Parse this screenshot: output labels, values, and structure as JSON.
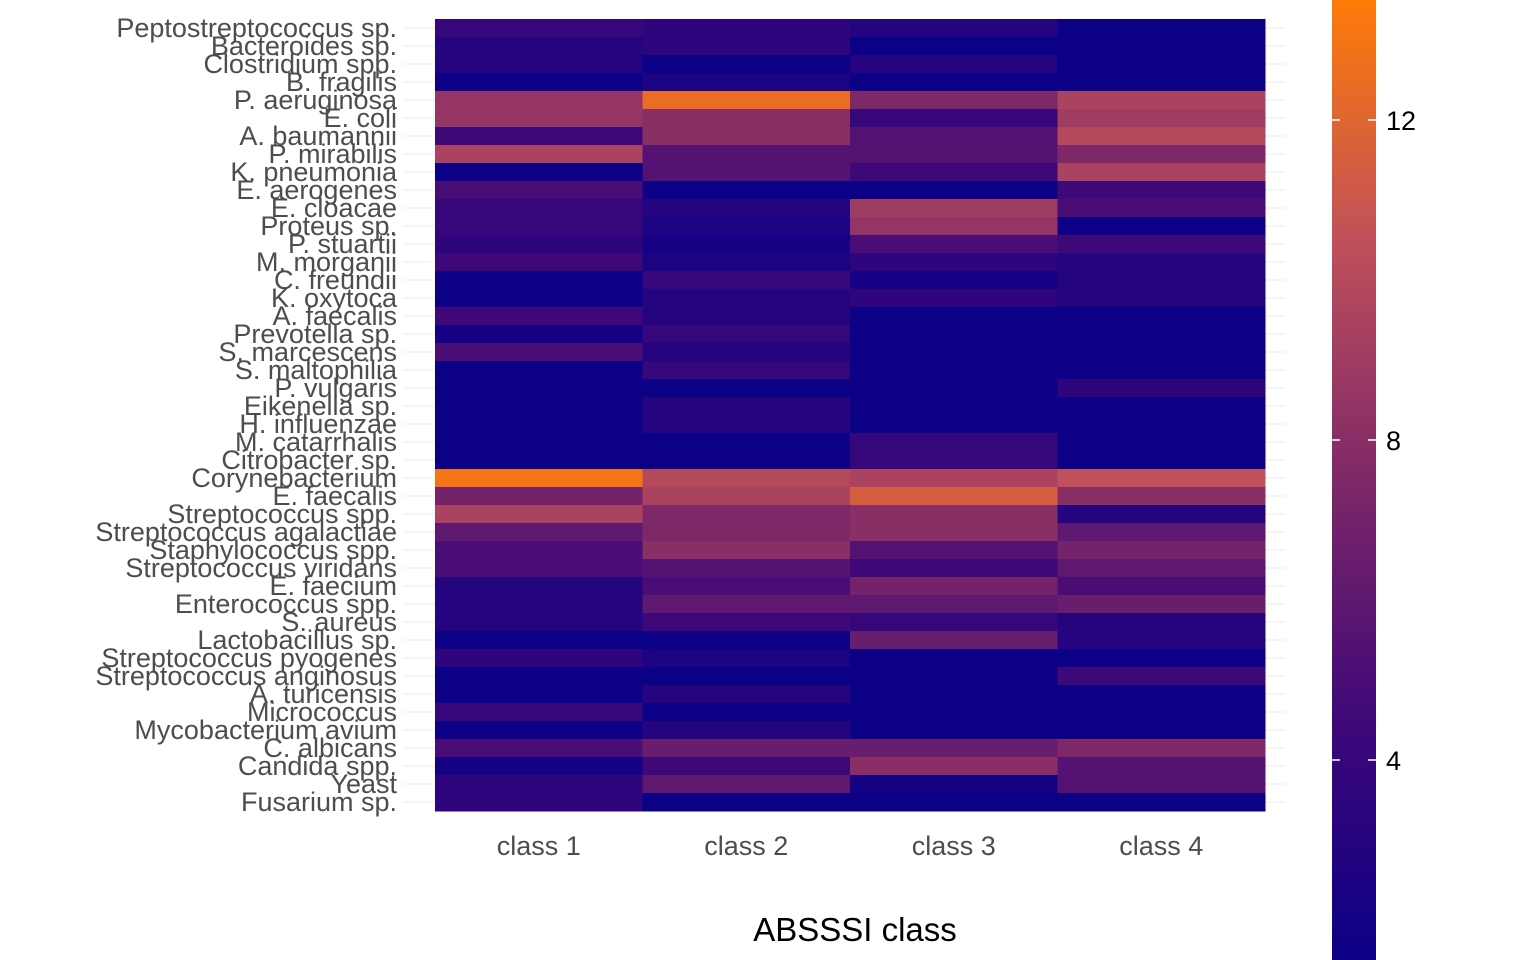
{
  "chart_data": {
    "type": "heatmap",
    "xlabel": "ABSSSI class",
    "ylabel": "",
    "x_categories": [
      "class 1",
      "class 2",
      "class 3",
      "class 4"
    ],
    "y_categories": [
      "Peptostreptococcus sp.",
      "Bacteroides sp.",
      "Clostridium spp.",
      "B. fragilis",
      "P. aeruginosa",
      "E. coli",
      "A. baumannii",
      "P. mirabilis",
      "K. pneumonia",
      "E. aerogenes",
      "E. cloacae",
      "Proteus sp.",
      "P. stuartii",
      "M. morganii",
      "C. freundii",
      "K. oxytoca",
      "A. faecalis",
      "Prevotella sp.",
      "S. marcescens",
      "S. maltophilia",
      "P. vulgaris",
      "Eikenella sp.",
      "H. influenzae",
      "M. catarrhalis",
      "Citrobacter sp.",
      "Corynebacterium",
      "E. faecalis",
      "Streptococcus spp.",
      "Streptococcus agalactiae",
      "Staphylococcus spp.",
      "Streptococcus viridans",
      "E. faecium",
      "Enterococcus spp.",
      "S. aureus",
      "Lactobacillus sp.",
      "Streptococcus pyogenes",
      "Streptococcus anginosus",
      "A. turicensis",
      "Micrococcus",
      "Mycobacterium avium",
      "C. albicans",
      "Candida spp.",
      "Yeast",
      "Fusarium sp."
    ],
    "values": [
      [
        4.0,
        3.5,
        3.0,
        1.5
      ],
      [
        3.0,
        3.5,
        1.5,
        1.5
      ],
      [
        3.0,
        1.5,
        3.0,
        1.5
      ],
      [
        1.5,
        2.5,
        1.5,
        1.5
      ],
      [
        8.5,
        12.5,
        7.5,
        9.5
      ],
      [
        8.5,
        8.0,
        4.0,
        9.0
      ],
      [
        4.5,
        8.0,
        5.5,
        10.0
      ],
      [
        9.5,
        5.5,
        5.5,
        7.5
      ],
      [
        1.5,
        5.5,
        4.5,
        9.5
      ],
      [
        5.0,
        1.5,
        1.5,
        4.5
      ],
      [
        4.0,
        3.0,
        9.0,
        5.0
      ],
      [
        4.0,
        2.5,
        8.5,
        1.5
      ],
      [
        3.5,
        2.0,
        5.0,
        4.5
      ],
      [
        4.5,
        2.5,
        3.5,
        3.0
      ],
      [
        1.5,
        4.0,
        2.0,
        3.0
      ],
      [
        1.5,
        3.0,
        3.5,
        3.0
      ],
      [
        4.5,
        3.0,
        1.5,
        1.5
      ],
      [
        2.0,
        4.0,
        1.5,
        1.5
      ],
      [
        5.0,
        3.0,
        1.5,
        1.5
      ],
      [
        1.5,
        4.0,
        1.5,
        1.5
      ],
      [
        1.5,
        1.5,
        1.5,
        3.5
      ],
      [
        1.5,
        3.0,
        1.5,
        1.5
      ],
      [
        1.5,
        3.0,
        1.5,
        1.5
      ],
      [
        1.5,
        1.5,
        4.0,
        1.5
      ],
      [
        1.5,
        1.5,
        4.0,
        1.5
      ],
      [
        13.0,
        10.0,
        9.5,
        10.5
      ],
      [
        7.0,
        9.5,
        11.5,
        8.0
      ],
      [
        9.5,
        7.5,
        8.0,
        3.0
      ],
      [
        6.0,
        7.5,
        8.0,
        6.0
      ],
      [
        5.0,
        8.0,
        5.5,
        7.0
      ],
      [
        5.0,
        5.5,
        4.5,
        6.0
      ],
      [
        3.0,
        5.0,
        7.0,
        5.0
      ],
      [
        3.0,
        6.0,
        6.0,
        6.5
      ],
      [
        3.0,
        4.5,
        4.0,
        3.0
      ],
      [
        1.5,
        1.5,
        6.5,
        3.0
      ],
      [
        3.5,
        2.5,
        1.5,
        1.5
      ],
      [
        1.5,
        1.5,
        1.5,
        4.5
      ],
      [
        1.5,
        3.0,
        1.5,
        1.5
      ],
      [
        4.0,
        1.5,
        1.5,
        1.5
      ],
      [
        1.5,
        3.0,
        1.5,
        1.5
      ],
      [
        5.0,
        6.5,
        6.5,
        7.5
      ],
      [
        2.0,
        4.5,
        8.0,
        5.5
      ],
      [
        3.5,
        6.0,
        2.0,
        5.5
      ],
      [
        3.5,
        1.5,
        1.5,
        1.5
      ]
    ],
    "colorbar": {
      "ticks": [
        4,
        8,
        12
      ],
      "range": [
        1.5,
        13.5
      ],
      "colors": [
        "#0b0086",
        "#3f0878",
        "#7e2868",
        "#c0505a",
        "#ff7b08"
      ]
    },
    "grid": true,
    "legend": "right"
  }
}
